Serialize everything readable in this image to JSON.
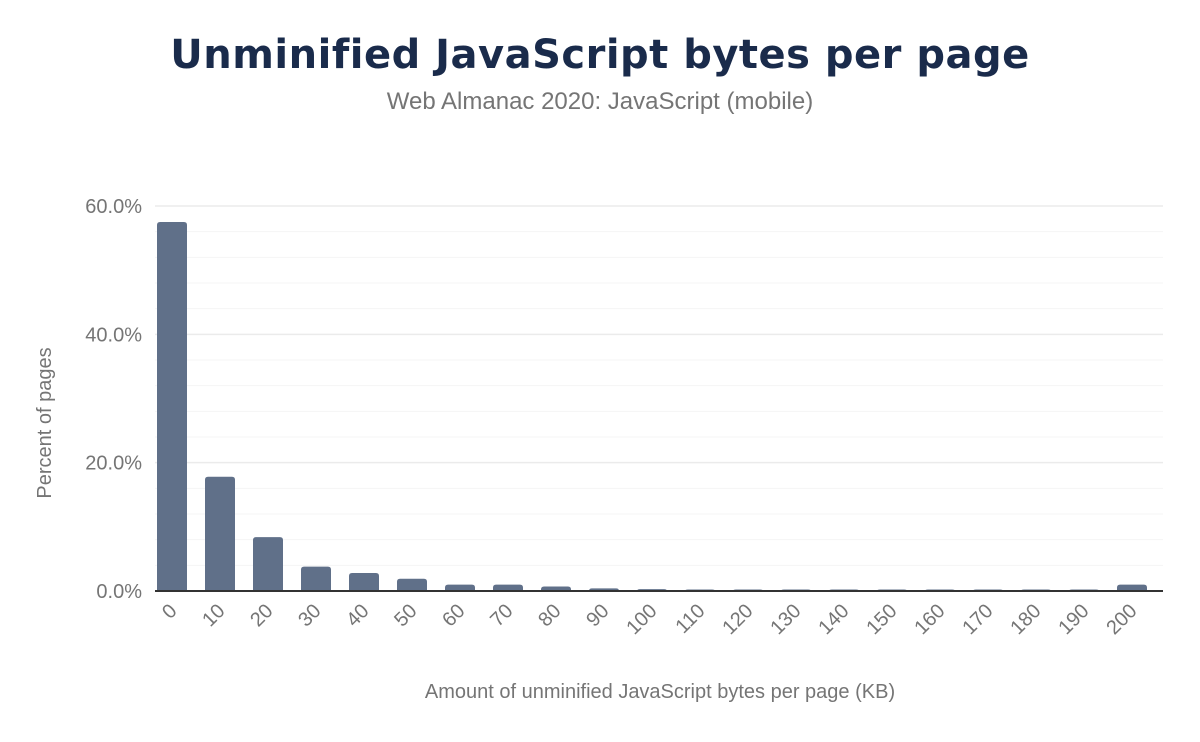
{
  "chart_data": {
    "type": "bar",
    "title": "Unminified JavaScript bytes per page",
    "subtitle": "Web Almanac 2020: JavaScript (mobile)",
    "xlabel": "Amount of unminified JavaScript bytes per page (KB)",
    "ylabel": "Percent of pages",
    "categories": [
      "0",
      "10",
      "20",
      "30",
      "40",
      "50",
      "60",
      "70",
      "80",
      "90",
      "100",
      "110",
      "120",
      "130",
      "140",
      "150",
      "160",
      "170",
      "180",
      "190",
      "200"
    ],
    "values": [
      57.5,
      17.8,
      8.4,
      3.8,
      2.8,
      1.9,
      1.0,
      1.0,
      0.7,
      0.4,
      0.3,
      0.05,
      0.05,
      0.05,
      0.05,
      0.05,
      0.05,
      0.05,
      0.05,
      0.05,
      1.0
    ],
    "ylim": [
      0,
      60
    ],
    "yticks": [
      "0.0%",
      "20.0%",
      "40.0%",
      "60.0%"
    ],
    "ytick_values": [
      0,
      20,
      40,
      60
    ],
    "grid": true,
    "bar_color": "#607089"
  }
}
